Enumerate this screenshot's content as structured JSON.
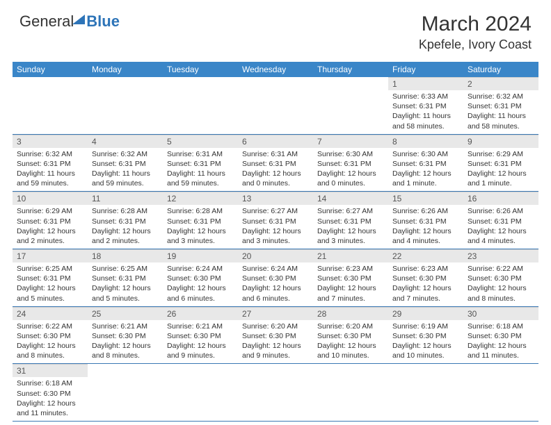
{
  "logo": {
    "part1": "General",
    "part2": "Blue"
  },
  "title": "March 2024",
  "location": "Kpefele, Ivory Coast",
  "colors": {
    "header_bg": "#3a86c8",
    "header_text": "#ffffff",
    "daynum_bg": "#e8e8e8",
    "row_border": "#3a78b4",
    "text": "#333333",
    "logo_blue": "#2d74b8"
  },
  "layout": {
    "columns": 7,
    "rows": 6,
    "first_day_column_index": 5,
    "font_family": "Arial",
    "title_fontsize": 30,
    "location_fontsize": 18,
    "weekday_fontsize": 12,
    "daynum_fontsize": 12,
    "info_fontsize": 10.5
  },
  "weekdays": [
    "Sunday",
    "Monday",
    "Tuesday",
    "Wednesday",
    "Thursday",
    "Friday",
    "Saturday"
  ],
  "days": [
    {
      "n": 1,
      "sunrise": "6:33 AM",
      "sunset": "6:31 PM",
      "daylight": "11 hours and 58 minutes."
    },
    {
      "n": 2,
      "sunrise": "6:32 AM",
      "sunset": "6:31 PM",
      "daylight": "11 hours and 58 minutes."
    },
    {
      "n": 3,
      "sunrise": "6:32 AM",
      "sunset": "6:31 PM",
      "daylight": "11 hours and 59 minutes."
    },
    {
      "n": 4,
      "sunrise": "6:32 AM",
      "sunset": "6:31 PM",
      "daylight": "11 hours and 59 minutes."
    },
    {
      "n": 5,
      "sunrise": "6:31 AM",
      "sunset": "6:31 PM",
      "daylight": "11 hours and 59 minutes."
    },
    {
      "n": 6,
      "sunrise": "6:31 AM",
      "sunset": "6:31 PM",
      "daylight": "12 hours and 0 minutes."
    },
    {
      "n": 7,
      "sunrise": "6:30 AM",
      "sunset": "6:31 PM",
      "daylight": "12 hours and 0 minutes."
    },
    {
      "n": 8,
      "sunrise": "6:30 AM",
      "sunset": "6:31 PM",
      "daylight": "12 hours and 1 minute."
    },
    {
      "n": 9,
      "sunrise": "6:29 AM",
      "sunset": "6:31 PM",
      "daylight": "12 hours and 1 minute."
    },
    {
      "n": 10,
      "sunrise": "6:29 AM",
      "sunset": "6:31 PM",
      "daylight": "12 hours and 2 minutes."
    },
    {
      "n": 11,
      "sunrise": "6:28 AM",
      "sunset": "6:31 PM",
      "daylight": "12 hours and 2 minutes."
    },
    {
      "n": 12,
      "sunrise": "6:28 AM",
      "sunset": "6:31 PM",
      "daylight": "12 hours and 3 minutes."
    },
    {
      "n": 13,
      "sunrise": "6:27 AM",
      "sunset": "6:31 PM",
      "daylight": "12 hours and 3 minutes."
    },
    {
      "n": 14,
      "sunrise": "6:27 AM",
      "sunset": "6:31 PM",
      "daylight": "12 hours and 3 minutes."
    },
    {
      "n": 15,
      "sunrise": "6:26 AM",
      "sunset": "6:31 PM",
      "daylight": "12 hours and 4 minutes."
    },
    {
      "n": 16,
      "sunrise": "6:26 AM",
      "sunset": "6:31 PM",
      "daylight": "12 hours and 4 minutes."
    },
    {
      "n": 17,
      "sunrise": "6:25 AM",
      "sunset": "6:31 PM",
      "daylight": "12 hours and 5 minutes."
    },
    {
      "n": 18,
      "sunrise": "6:25 AM",
      "sunset": "6:31 PM",
      "daylight": "12 hours and 5 minutes."
    },
    {
      "n": 19,
      "sunrise": "6:24 AM",
      "sunset": "6:30 PM",
      "daylight": "12 hours and 6 minutes."
    },
    {
      "n": 20,
      "sunrise": "6:24 AM",
      "sunset": "6:30 PM",
      "daylight": "12 hours and 6 minutes."
    },
    {
      "n": 21,
      "sunrise": "6:23 AM",
      "sunset": "6:30 PM",
      "daylight": "12 hours and 7 minutes."
    },
    {
      "n": 22,
      "sunrise": "6:23 AM",
      "sunset": "6:30 PM",
      "daylight": "12 hours and 7 minutes."
    },
    {
      "n": 23,
      "sunrise": "6:22 AM",
      "sunset": "6:30 PM",
      "daylight": "12 hours and 8 minutes."
    },
    {
      "n": 24,
      "sunrise": "6:22 AM",
      "sunset": "6:30 PM",
      "daylight": "12 hours and 8 minutes."
    },
    {
      "n": 25,
      "sunrise": "6:21 AM",
      "sunset": "6:30 PM",
      "daylight": "12 hours and 8 minutes."
    },
    {
      "n": 26,
      "sunrise": "6:21 AM",
      "sunset": "6:30 PM",
      "daylight": "12 hours and 9 minutes."
    },
    {
      "n": 27,
      "sunrise": "6:20 AM",
      "sunset": "6:30 PM",
      "daylight": "12 hours and 9 minutes."
    },
    {
      "n": 28,
      "sunrise": "6:20 AM",
      "sunset": "6:30 PM",
      "daylight": "12 hours and 10 minutes."
    },
    {
      "n": 29,
      "sunrise": "6:19 AM",
      "sunset": "6:30 PM",
      "daylight": "12 hours and 10 minutes."
    },
    {
      "n": 30,
      "sunrise": "6:18 AM",
      "sunset": "6:30 PM",
      "daylight": "12 hours and 11 minutes."
    },
    {
      "n": 31,
      "sunrise": "6:18 AM",
      "sunset": "6:30 PM",
      "daylight": "12 hours and 11 minutes."
    }
  ],
  "labels": {
    "sunrise_prefix": "Sunrise: ",
    "sunset_prefix": "Sunset: ",
    "daylight_prefix": "Daylight: "
  }
}
